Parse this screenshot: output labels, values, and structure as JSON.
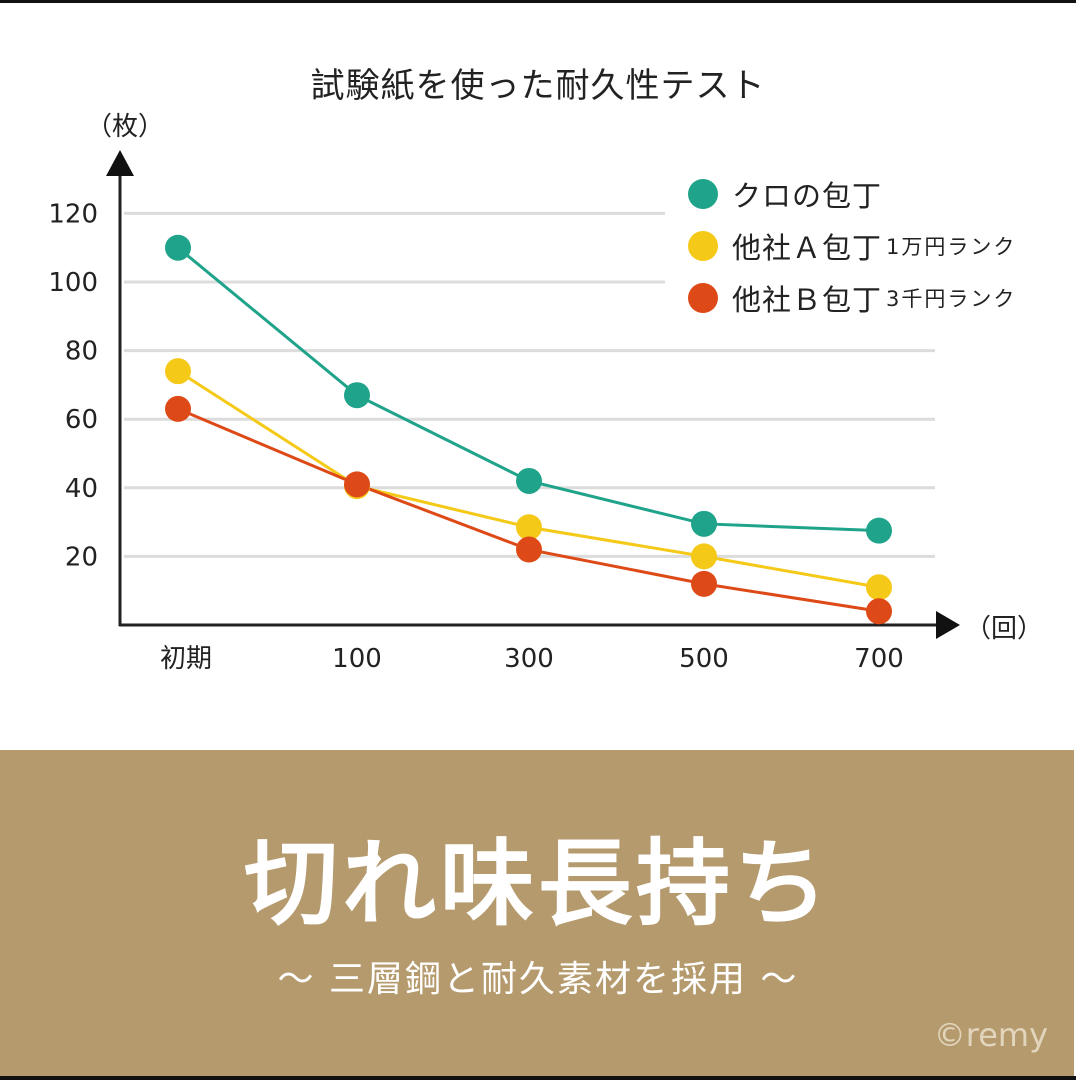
{
  "header": {
    "title": "試験紙を使った耐久性テスト"
  },
  "axes": {
    "y_unit": "（枚）",
    "x_unit": "（回）"
  },
  "legend": [
    {
      "label": "クロの包丁",
      "sub": "",
      "color": "#1fa38a"
    },
    {
      "label": "他社Ａ包丁",
      "sub": "1万円ランク",
      "color": "#f5c918"
    },
    {
      "label": "他社Ｂ包丁",
      "sub": "3千円ランク",
      "color": "#de4a17"
    }
  ],
  "banner": {
    "headline": "切れ味長持ち",
    "subline": "〜 三層鋼と耐久素材を採用 〜",
    "credit": "©remy",
    "background": "#b59a6d"
  },
  "chart_data": {
    "type": "line",
    "title": "試験紙を使った耐久性テスト",
    "xlabel": "（回）",
    "ylabel": "（枚）",
    "categories": [
      "初期",
      "100",
      "300",
      "500",
      "700"
    ],
    "yticks": [
      20,
      40,
      60,
      80,
      100,
      120
    ],
    "ylim": [
      0,
      130
    ],
    "grid": true,
    "legend_position": "top-right",
    "series": [
      {
        "name": "クロの包丁",
        "color": "#1fa38a",
        "values": [
          110,
          67,
          42,
          29.5,
          27.5
        ]
      },
      {
        "name": "他社Ａ包丁 1万円ランク",
        "color": "#f5c918",
        "values": [
          74,
          40.5,
          28.5,
          20,
          11
        ]
      },
      {
        "name": "他社Ｂ包丁 3千円ランク",
        "color": "#de4a17",
        "values": [
          63,
          41,
          22,
          12,
          4
        ]
      }
    ]
  }
}
